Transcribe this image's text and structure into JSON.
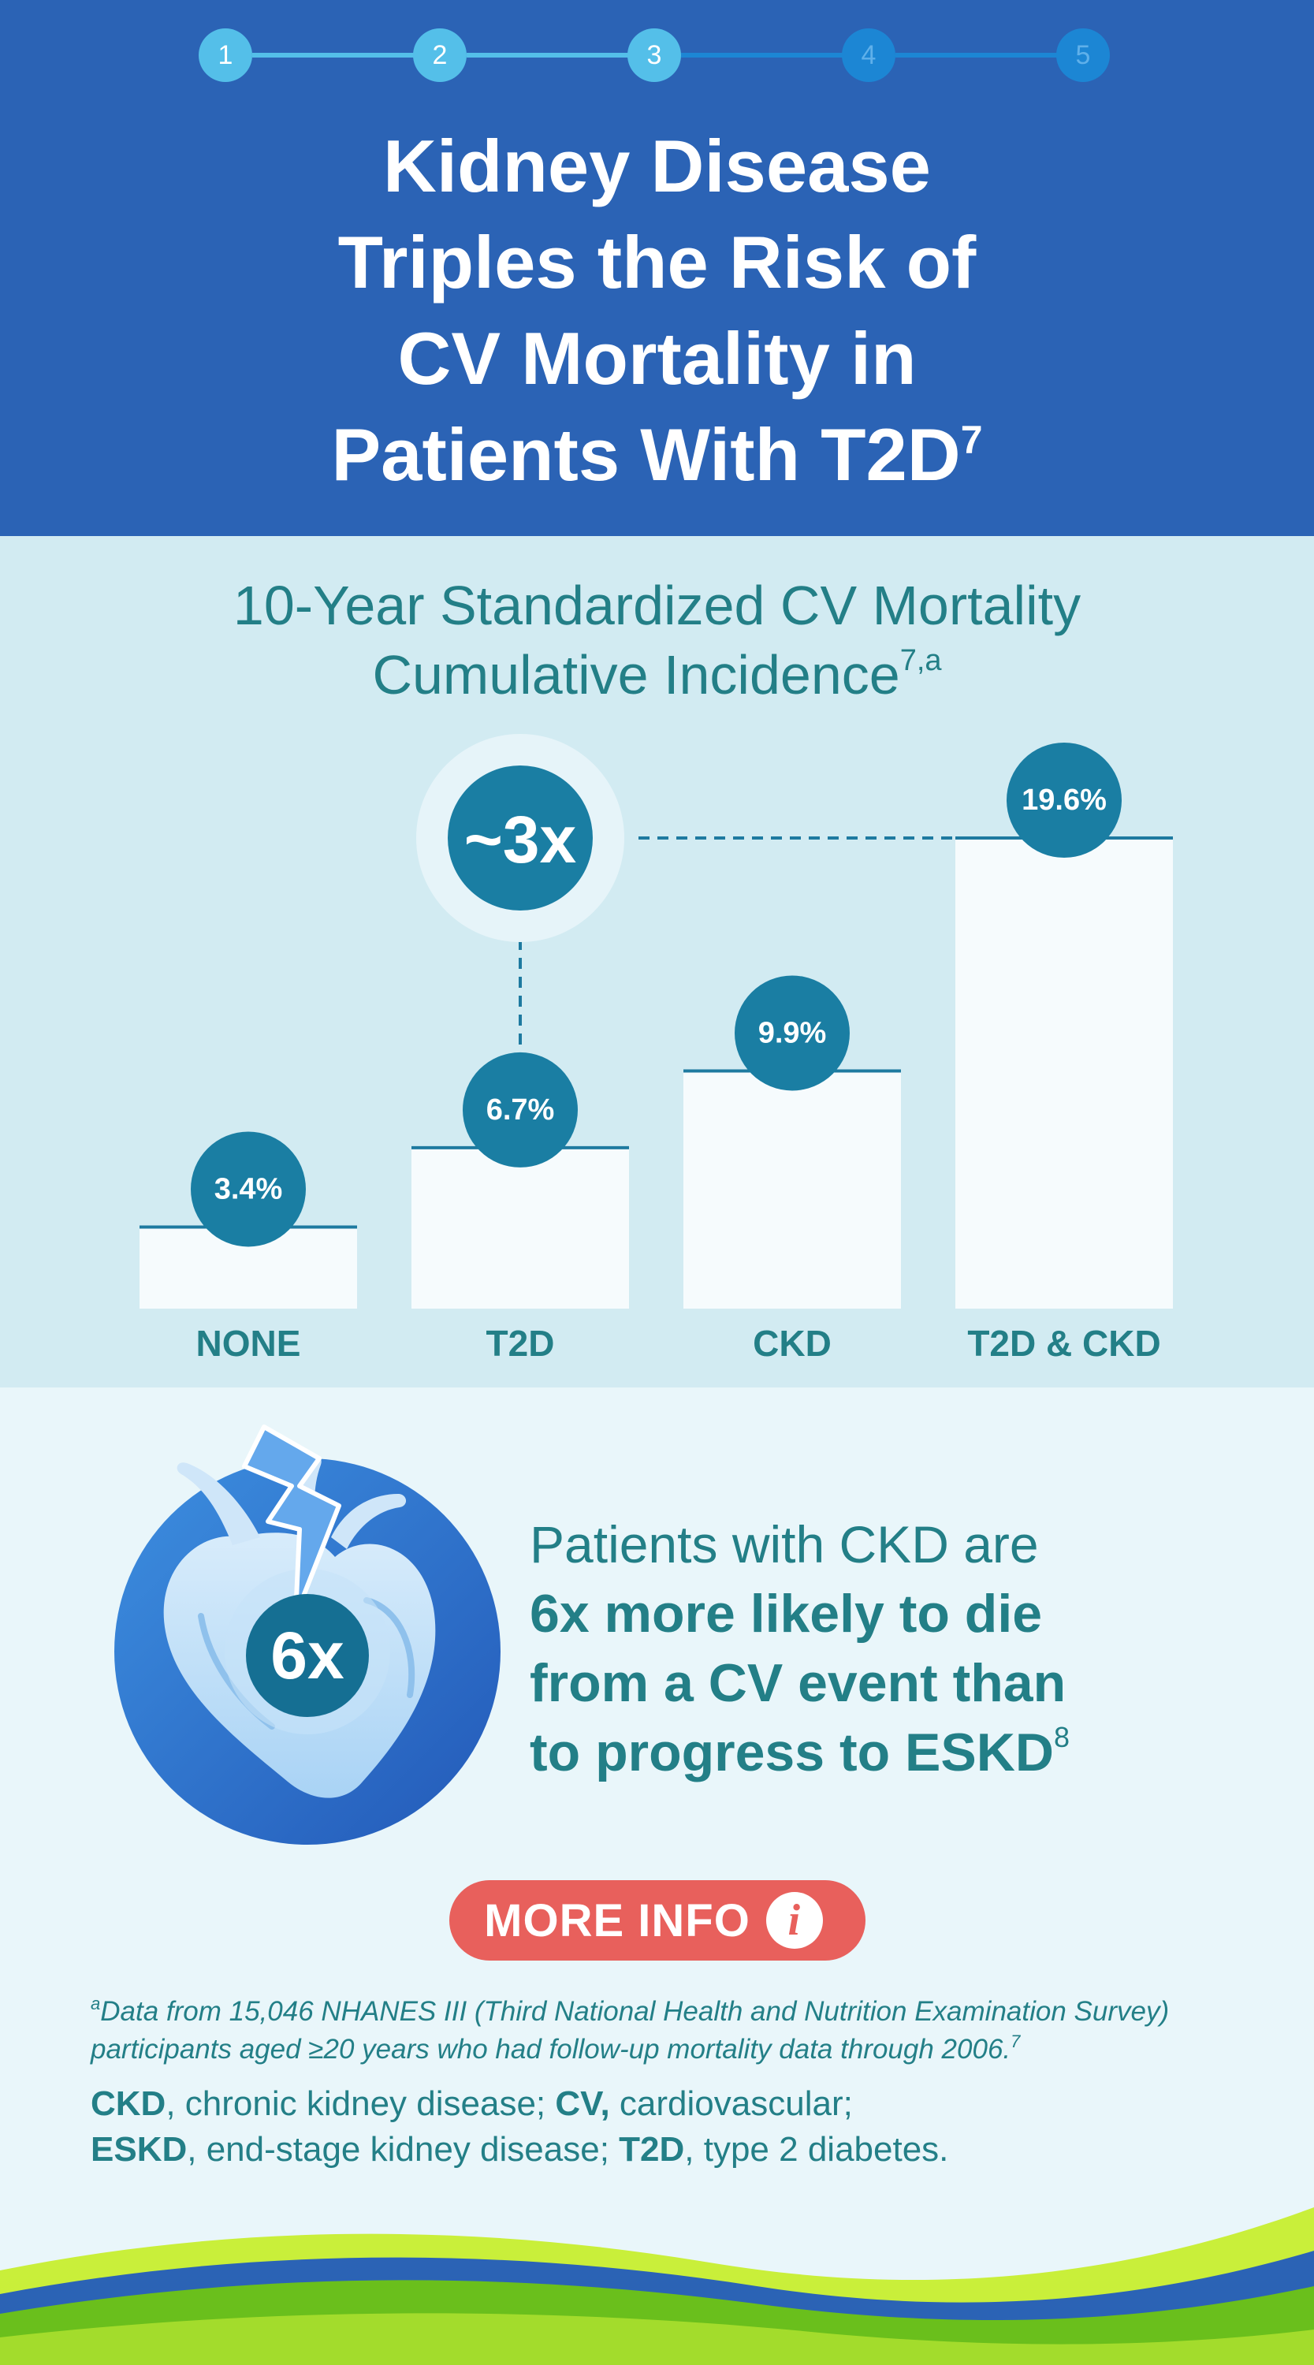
{
  "stepper": {
    "steps": [
      "1",
      "2",
      "3",
      "4",
      "5"
    ],
    "current": 3
  },
  "title": {
    "lines": [
      "Kidney Disease",
      "Triples the Risk of",
      "CV Mortality in",
      "Patients With T2D"
    ],
    "superscript": "7"
  },
  "chart_data": {
    "type": "bar",
    "title": "10-Year Standardized CV Mortality Cumulative Incidence",
    "title_lines": [
      "10-Year Standardized CV Mortality",
      "Cumulative Incidence"
    ],
    "title_superscript": "7,a",
    "categories": [
      "NONE",
      "T2D",
      "CKD",
      "T2D & CKD"
    ],
    "values": [
      3.4,
      6.7,
      9.9,
      19.6
    ],
    "value_labels": [
      "3.4%",
      "6.7%",
      "9.9%",
      "19.6%"
    ],
    "xlabel": "",
    "ylabel": "",
    "annotation": {
      "label": "~3x",
      "from_category": "T2D",
      "to_category": "T2D & CKD"
    },
    "ylim": [
      0,
      19.6
    ],
    "grid": false,
    "colors": {
      "bar": "#f6fbfd",
      "bar_line": "#1e7aa0",
      "badge": "#1a7ea3",
      "label": "#237f87"
    }
  },
  "heart": {
    "badge": "6x",
    "line1": "Patients with CKD are",
    "bold_lines": [
      "6x more likely to die",
      "from a CV event than",
      "to progress to ESKD"
    ],
    "superscript": "8"
  },
  "more_info": {
    "label": "MORE INFO",
    "icon": "info-icon",
    "icon_glyph": "i"
  },
  "footnote": {
    "marker": "a",
    "text": "Data from 15,046 NHANES III (Third National Health and Nutrition Examination Survey) participants aged ≥20 years who had follow-up mortality data through 2006.",
    "ref": "7"
  },
  "abbreviations": [
    {
      "term": "CKD",
      "sep": ", ",
      "def": "chronic kidney disease; "
    },
    {
      "term": "CV,",
      "sep": " ",
      "def": "cardiovascular;"
    },
    {
      "term": "ESKD",
      "sep": ", ",
      "def": "end-stage kidney disease; "
    },
    {
      "term": "T2D",
      "sep": ", ",
      "def": "type 2 diabetes."
    }
  ],
  "colors": {
    "header_bg": "#2b63b5",
    "chart_bg": "#d2ebf2",
    "page_bg": "#e9f6fa",
    "accent_teal": "#237f87",
    "button": "#e8605c"
  }
}
